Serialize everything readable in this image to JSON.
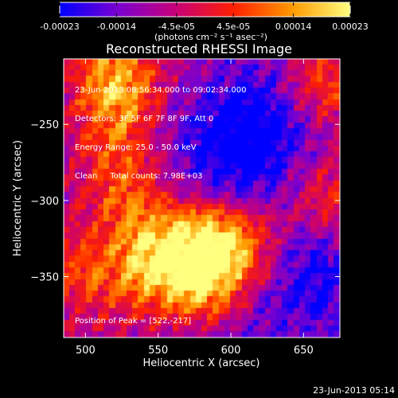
{
  "chart_data": {
    "type": "heatmap",
    "title": "Reconstructed RHESSI Image",
    "xlabel": "Heliocentric X (arcsec)",
    "ylabel": "Heliocentric Y (arcsec)",
    "xlim": [
      485,
      675
    ],
    "ylim": [
      -390,
      -207
    ],
    "x_ticks": [
      500,
      550,
      600,
      650
    ],
    "y_ticks": [
      -250,
      -300,
      -350
    ],
    "colorbar": {
      "ticks": [
        "-0.00023",
        "-0.00014",
        "-4.5e-05",
        "4.5e-05",
        "0.00014",
        "0.00023"
      ],
      "tick_values": [
        -0.00023,
        -0.00014,
        -4.5e-05,
        4.5e-05,
        0.00014,
        0.00023
      ],
      "range": [
        -0.00023,
        0.00023
      ],
      "unit_label": "(photons cm⁻² s⁻¹ asec⁻²)",
      "colors": [
        "#0000ff",
        "#7a00d0",
        "#c80078",
        "#ff2000",
        "#ff9a00",
        "#ffff80"
      ]
    },
    "annotations": [
      "23-Jun-2013 08:56:34.000 to 09:02:34.000",
      "Detectors: 3F 5F 6F 7F 8F 9F, Att 0",
      "Energy Range: 25.0 - 50.0 keV",
      "Clean     Total counts: 7.98E+03"
    ],
    "peak_label": "Position of Peak = [522,-217]",
    "peak": [
      522,
      -217
    ],
    "bright_regions": [
      {
        "x": 522,
        "y": -217,
        "amplitude": 0.9
      },
      {
        "x": 525,
        "y": -255,
        "amplitude": 0.6
      },
      {
        "x": 530,
        "y": -300,
        "amplitude": 0.6
      },
      {
        "x": 545,
        "y": -345,
        "amplitude": 0.85
      },
      {
        "x": 580,
        "y": -330,
        "amplitude": 0.95
      },
      {
        "x": 585,
        "y": -360,
        "amplitude": 0.7
      },
      {
        "x": 610,
        "y": -330,
        "amplitude": 0.7
      },
      {
        "x": 660,
        "y": -225,
        "amplitude": 0.8
      },
      {
        "x": 665,
        "y": -300,
        "amplitude": 0.6
      },
      {
        "x": 495,
        "y": -350,
        "amplitude": 0.5
      }
    ],
    "dim_regions": [
      {
        "x": 630,
        "y": -240,
        "amplitude": 0.9
      },
      {
        "x": 610,
        "y": -280,
        "amplitude": 0.8
      },
      {
        "x": 655,
        "y": -345,
        "amplitude": 0.9
      },
      {
        "x": 560,
        "y": -260,
        "amplitude": 0.4
      },
      {
        "x": 600,
        "y": -385,
        "amplitude": 0.5
      }
    ]
  },
  "footer": {
    "timestamp": "23-Jun-2013 05:14"
  }
}
